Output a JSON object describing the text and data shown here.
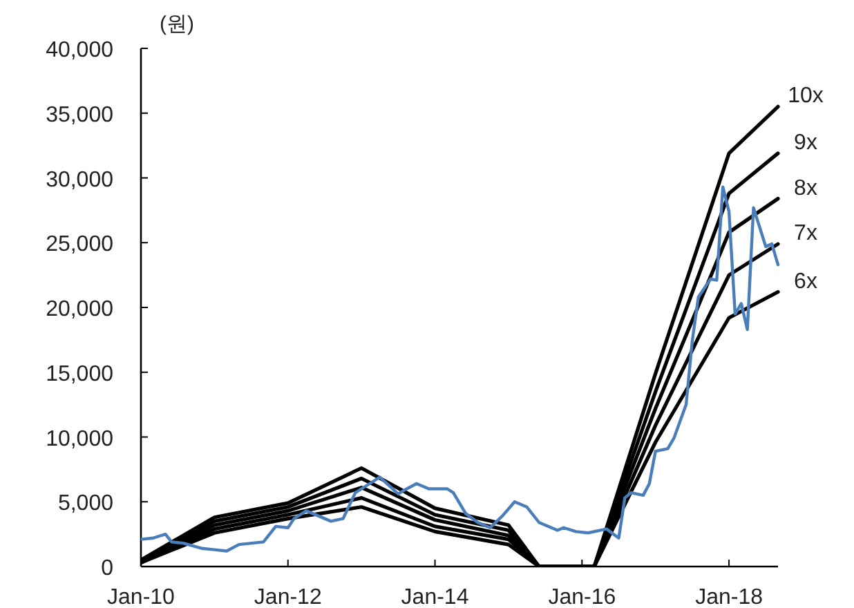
{
  "chart_data": {
    "type": "line",
    "ylabel": "(원)",
    "xlim": [
      "2010-01",
      "2018-09"
    ],
    "ylim": [
      0,
      40000
    ],
    "xticks": [
      {
        "value": "2010-01",
        "label": "Jan-10"
      },
      {
        "value": "2012-01",
        "label": "Jan-12"
      },
      {
        "value": "2014-01",
        "label": "Jan-14"
      },
      {
        "value": "2016-01",
        "label": "Jan-16"
      },
      {
        "value": "2018-01",
        "label": "Jan-18"
      }
    ],
    "yticks": [
      {
        "value": 0,
        "label": "0"
      },
      {
        "value": 5000,
        "label": "5,000"
      },
      {
        "value": 10000,
        "label": "10,000"
      },
      {
        "value": 15000,
        "label": "15,000"
      },
      {
        "value": 20000,
        "label": "20,000"
      },
      {
        "value": 25000,
        "label": "25,000"
      },
      {
        "value": 30000,
        "label": "30,000"
      },
      {
        "value": 35000,
        "label": "35,000"
      },
      {
        "value": 40000,
        "label": "40,000"
      }
    ],
    "series": [
      {
        "name": "10x",
        "color": "#000000",
        "x": [
          "2010-01",
          "2011-01",
          "2012-01",
          "2013-01",
          "2014-01",
          "2015-01",
          "2015-06",
          "2016-03",
          "2017-01",
          "2018-01",
          "2018-09"
        ],
        "values": [
          500,
          3800,
          4900,
          7600,
          4500,
          3200,
          0,
          0,
          14900,
          31900,
          35500
        ]
      },
      {
        "name": "9x",
        "color": "#000000",
        "x": [
          "2010-01",
          "2011-01",
          "2012-01",
          "2013-01",
          "2014-01",
          "2015-01",
          "2015-06",
          "2016-03",
          "2017-01",
          "2018-01",
          "2018-09"
        ],
        "values": [
          400,
          3500,
          4600,
          6800,
          4000,
          2800,
          0,
          0,
          13500,
          28800,
          31900
        ]
      },
      {
        "name": "8x",
        "color": "#000000",
        "x": [
          "2010-01",
          "2011-01",
          "2012-01",
          "2013-01",
          "2014-01",
          "2015-01",
          "2015-06",
          "2016-03",
          "2017-01",
          "2018-01",
          "2018-09"
        ],
        "values": [
          400,
          3200,
          4300,
          6100,
          3600,
          2400,
          0,
          0,
          12200,
          25800,
          28400
        ]
      },
      {
        "name": "7x",
        "color": "#000000",
        "x": [
          "2010-01",
          "2011-01",
          "2012-01",
          "2013-01",
          "2014-01",
          "2015-01",
          "2015-06",
          "2016-03",
          "2017-01",
          "2018-01",
          "2018-09"
        ],
        "values": [
          300,
          2900,
          4000,
          5300,
          3100,
          2100,
          0,
          0,
          10900,
          22500,
          24900
        ]
      },
      {
        "name": "6x",
        "color": "#000000",
        "x": [
          "2010-01",
          "2011-01",
          "2012-01",
          "2013-01",
          "2014-01",
          "2015-01",
          "2015-06",
          "2016-03",
          "2017-01",
          "2018-01",
          "2018-09"
        ],
        "values": [
          300,
          2600,
          3700,
          4600,
          2700,
          1700,
          0,
          0,
          9600,
          19200,
          21200
        ]
      },
      {
        "color": "#4a7ebb",
        "x": [
          "2010-01",
          "2010-03",
          "2010-05",
          "2010-06",
          "2010-08",
          "2010-11",
          "2011-01",
          "2011-03",
          "2011-05",
          "2011-09",
          "2011-11",
          "2012-01",
          "2012-02",
          "2012-04",
          "2012-06",
          "2012-08",
          "2012-10",
          "2012-12",
          "2013-01",
          "2013-03",
          "2013-04",
          "2013-07",
          "2013-08",
          "2013-10",
          "2013-12",
          "2014-03",
          "2014-04",
          "2014-06",
          "2014-08",
          "2014-10",
          "2014-12",
          "2015-02",
          "2015-04",
          "2015-06",
          "2015-09",
          "2015-10",
          "2015-12",
          "2016-02",
          "2016-05",
          "2016-07",
          "2016-08",
          "2016-09",
          "2016-11",
          "2016-12",
          "2017-01",
          "2017-03",
          "2017-04",
          "2017-06",
          "2017-07",
          "2017-08",
          "2017-10",
          "2017-11",
          "2017-12",
          "2018-01",
          "2018-02",
          "2018-03",
          "2018-04",
          "2018-05",
          "2018-07",
          "2018-08",
          "2018-09"
        ],
        "values": [
          2100,
          2200,
          2500,
          1900,
          1800,
          1400,
          1300,
          1200,
          1700,
          1900,
          3100,
          3000,
          3700,
          4300,
          3900,
          3500,
          3700,
          5700,
          6000,
          6600,
          6900,
          5600,
          5900,
          6400,
          6000,
          6000,
          5700,
          4100,
          3400,
          3000,
          3900,
          5000,
          4600,
          3400,
          2800,
          3000,
          2700,
          2600,
          2900,
          2200,
          5300,
          5700,
          5500,
          6400,
          8900,
          9100,
          9900,
          12500,
          17400,
          20800,
          22200,
          22100,
          29300,
          27400,
          19500,
          20300,
          18300,
          27700,
          24700,
          24900,
          23300
        ]
      }
    ]
  }
}
